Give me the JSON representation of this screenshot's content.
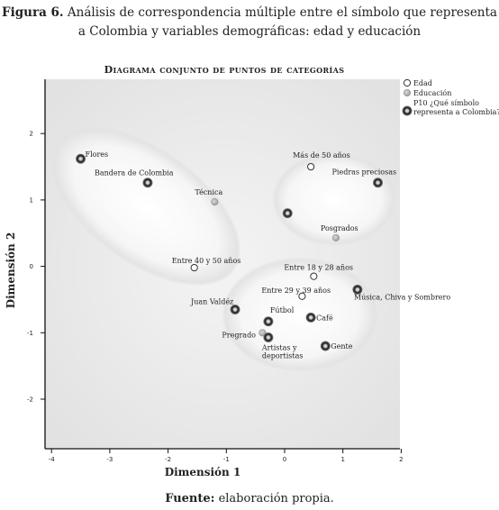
{
  "figure_caption": {
    "label": "Figura 6.",
    "line1": "Análisis de correspondencia múltiple entre el símbolo que representa",
    "line2": "a Colombia y variables demográficas: edad y educación"
  },
  "source": {
    "label": "Fuente:",
    "text": "elaboración propia."
  },
  "chart_data": {
    "type": "scatter",
    "title": "Diagrama conjunto de puntos de categorías",
    "xlabel": "Dimensión 1",
    "ylabel": "Dimensión 2",
    "xlim": [
      -4,
      2
    ],
    "ylim": [
      -2.8,
      2.8
    ],
    "x_ticks": [
      -4,
      -3,
      -2,
      -1,
      0,
      1,
      2
    ],
    "y_ticks": [
      2,
      1,
      0,
      -1,
      -2
    ],
    "grid": false,
    "legend_position": "top-right",
    "series": [
      {
        "name": "Edad",
        "marker": "hollow-circle",
        "color": "#ffffff",
        "points": [
          {
            "label": "Más de 50 años",
            "x": 0.45,
            "y": 1.5
          },
          {
            "label": "Entre 40 y 50 años",
            "x": -1.55,
            "y": -0.02
          },
          {
            "label": "Entre 18 y 28 años",
            "x": 0.5,
            "y": -0.15
          },
          {
            "label": "Entre 29 y 39 años",
            "x": 0.3,
            "y": -0.45
          }
        ]
      },
      {
        "name": "Educación",
        "marker": "gray-circle",
        "color": "#b0b0b0",
        "points": [
          {
            "label": "Técnica",
            "x": -1.2,
            "y": 0.97
          },
          {
            "label": "Posgrados",
            "x": 0.88,
            "y": 0.43
          },
          {
            "label": "Pregrado",
            "x": -0.38,
            "y": -1.0
          }
        ]
      },
      {
        "name": "P10 ¿Qué símbolo representa a Colombia?",
        "marker": "dark-ring",
        "color": "#333333",
        "points": [
          {
            "label": "Flores",
            "x": -3.5,
            "y": 1.62
          },
          {
            "label": "Bandera de Colombia",
            "x": -2.35,
            "y": 1.26
          },
          {
            "label": "Piedras preciosas",
            "x": 1.6,
            "y": 1.26
          },
          {
            "label": "",
            "x": 0.05,
            "y": 0.8
          },
          {
            "label": "Música, Chiva y Sombrero",
            "x": 1.25,
            "y": -0.35
          },
          {
            "label": "Juan Valdéz",
            "x": -0.85,
            "y": -0.65
          },
          {
            "label": "Fútbol",
            "x": -0.28,
            "y": -0.83
          },
          {
            "label": "Café",
            "x": 0.45,
            "y": -0.77
          },
          {
            "label": "Artistas y deportistas",
            "x": -0.28,
            "y": -1.07
          },
          {
            "label": "Gente",
            "x": 0.7,
            "y": -1.2
          }
        ]
      }
    ]
  }
}
